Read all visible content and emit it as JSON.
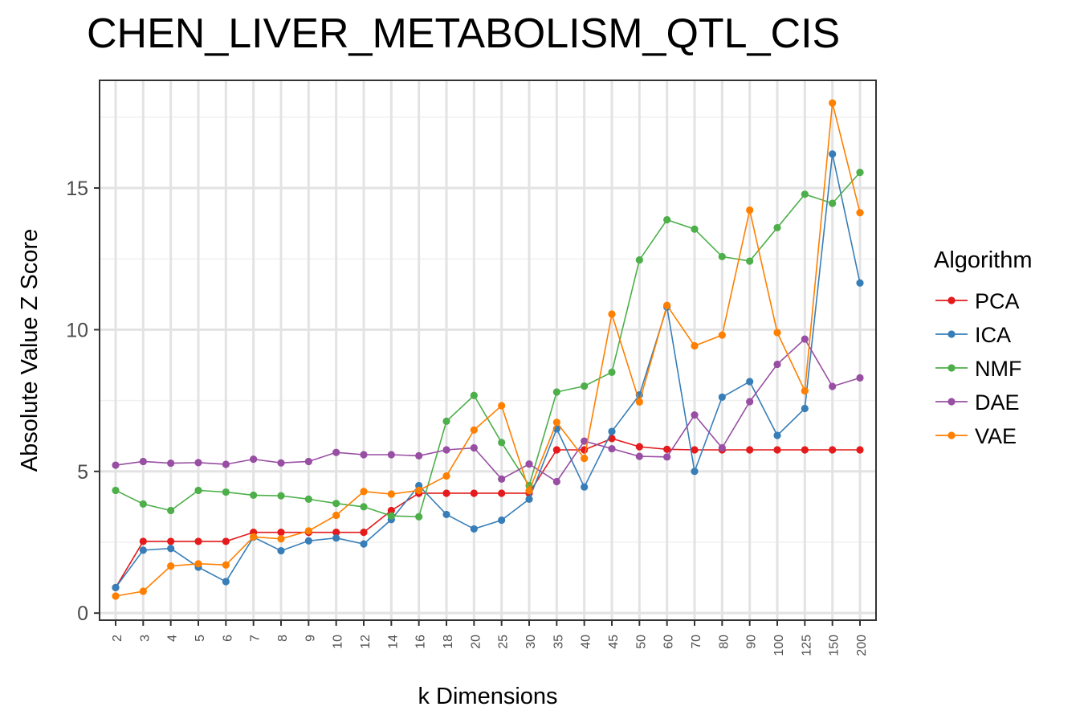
{
  "chart_data": {
    "type": "line",
    "title": "CHEN_LIVER_METABOLISM_QTL_CIS",
    "xlabel": "k Dimensions",
    "ylabel": "Absolute Value Z Score",
    "categories": [
      "2",
      "3",
      "4",
      "5",
      "6",
      "7",
      "8",
      "9",
      "10",
      "12",
      "14",
      "16",
      "18",
      "20",
      "25",
      "30",
      "35",
      "40",
      "45",
      "50",
      "60",
      "70",
      "80",
      "90",
      "100",
      "125",
      "150",
      "200"
    ],
    "yticks": [
      0,
      5,
      10,
      15
    ],
    "ylim": [
      -0.25,
      18.8
    ],
    "grid": true,
    "legend": {
      "title": "Algorithm",
      "placement": "right"
    },
    "series": [
      {
        "name": "PCA",
        "color": "#e41a1c",
        "values": [
          0.9,
          2.53,
          2.53,
          2.53,
          2.53,
          2.85,
          2.85,
          2.85,
          2.85,
          2.85,
          3.62,
          4.23,
          4.23,
          4.23,
          4.23,
          4.23,
          5.76,
          5.76,
          6.16,
          5.87,
          5.78,
          5.76,
          5.76,
          5.76,
          5.76,
          5.76,
          5.76,
          5.76
        ]
      },
      {
        "name": "ICA",
        "color": "#377eb8",
        "values": [
          0.9,
          2.22,
          2.28,
          1.62,
          1.11,
          2.68,
          2.2,
          2.55,
          2.65,
          2.44,
          3.3,
          4.5,
          3.48,
          2.97,
          3.28,
          4.02,
          6.5,
          4.45,
          6.41,
          7.7,
          10.8,
          5.0,
          7.62,
          8.17,
          6.27,
          7.22,
          16.2,
          11.65
        ]
      },
      {
        "name": "NMF",
        "color": "#4daf4a",
        "values": [
          4.33,
          3.85,
          3.62,
          4.33,
          4.27,
          4.16,
          4.14,
          4.02,
          3.87,
          3.75,
          3.43,
          3.4,
          6.77,
          7.68,
          6.02,
          4.5,
          7.8,
          8.01,
          8.5,
          12.46,
          13.88,
          13.55,
          12.58,
          12.42,
          13.6,
          14.78,
          14.46,
          15.55
        ]
      },
      {
        "name": "DAE",
        "color": "#984ea3",
        "values": [
          5.22,
          5.35,
          5.29,
          5.31,
          5.25,
          5.43,
          5.3,
          5.35,
          5.67,
          5.59,
          5.59,
          5.55,
          5.76,
          5.83,
          4.73,
          5.26,
          4.64,
          6.07,
          5.8,
          5.53,
          5.51,
          6.99,
          5.83,
          7.46,
          8.78,
          9.67,
          8.0,
          8.3
        ]
      },
      {
        "name": "VAE",
        "color": "#ff7f00",
        "values": [
          0.6,
          0.77,
          1.66,
          1.74,
          1.7,
          2.69,
          2.62,
          2.9,
          3.45,
          4.29,
          4.2,
          4.33,
          4.84,
          6.46,
          7.32,
          4.32,
          6.73,
          5.46,
          10.55,
          7.45,
          10.86,
          9.43,
          9.81,
          14.22,
          9.9,
          7.84,
          18.0,
          14.13
        ]
      }
    ]
  }
}
